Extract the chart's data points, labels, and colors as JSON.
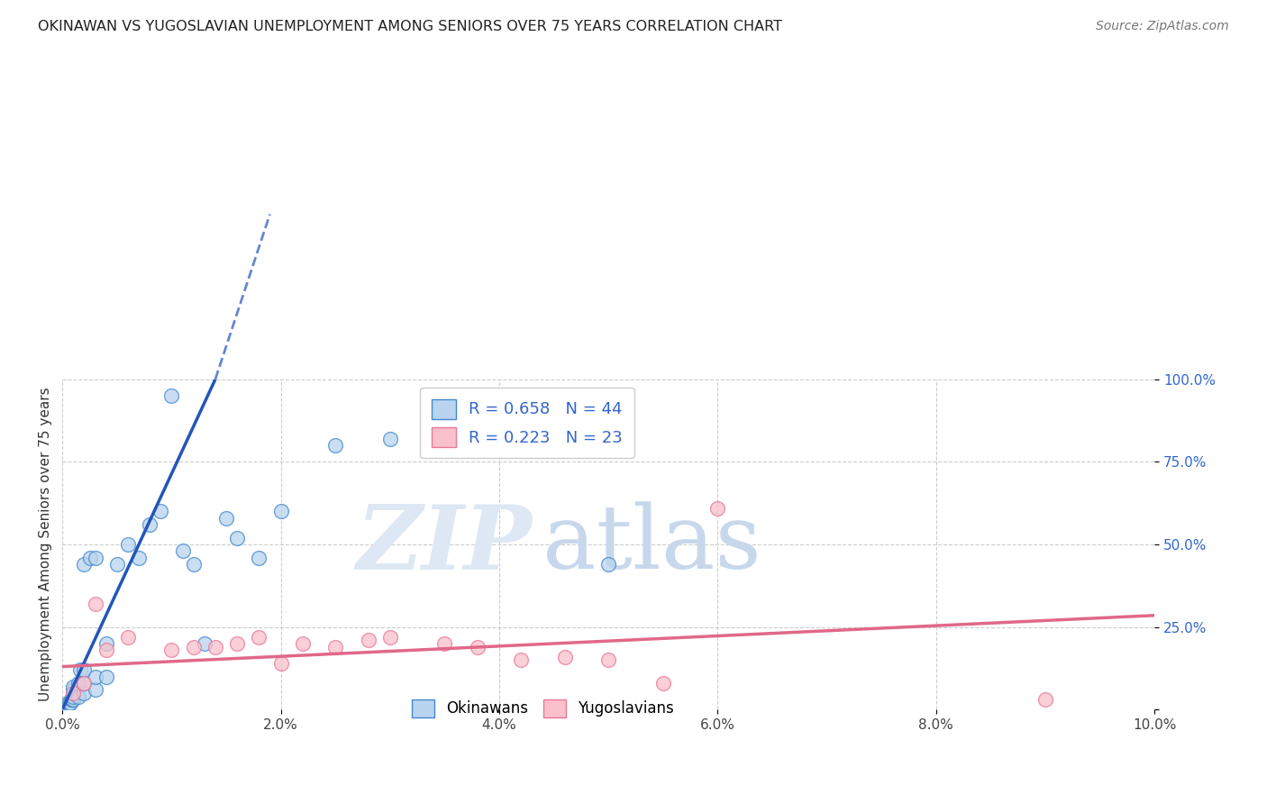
{
  "title": "OKINAWAN VS YUGOSLAVIAN UNEMPLOYMENT AMONG SENIORS OVER 75 YEARS CORRELATION CHART",
  "source": "Source: ZipAtlas.com",
  "ylabel": "Unemployment Among Seniors over 75 years",
  "legend_labels": [
    "Okinawans",
    "Yugoslavians"
  ],
  "R_okinawan": 0.658,
  "N_okinawan": 44,
  "R_yugoslavian": 0.223,
  "N_yugoslavian": 23,
  "okinawan_fill": "#b8d4ee",
  "yugoslavian_fill": "#f9c0cc",
  "okinawan_edge": "#4488cc",
  "yugoslavian_edge": "#e87898",
  "okinawan_line": "#2255bb",
  "yugoslavian_line": "#e06888",
  "xlim": [
    0,
    0.1
  ],
  "ylim": [
    0,
    1.0
  ],
  "xticks": [
    0.0,
    0.02,
    0.04,
    0.06,
    0.08,
    0.1
  ],
  "xticklabels": [
    "0.0%",
    "2.0%",
    "4.0%",
    "6.0%",
    "8.0%",
    "10.0%"
  ],
  "yticks": [
    0.0,
    0.25,
    0.5,
    0.75,
    1.0
  ],
  "yticklabels": [
    "",
    "25.0%",
    "50.0%",
    "75.0%",
    "100.0%"
  ],
  "okinawan_x": [
    0.0002,
    0.0003,
    0.0004,
    0.0005,
    0.0005,
    0.0006,
    0.0007,
    0.0008,
    0.0009,
    0.001,
    0.001,
    0.001,
    0.001,
    0.001,
    0.0015,
    0.0015,
    0.0016,
    0.002,
    0.002,
    0.002,
    0.002,
    0.0025,
    0.003,
    0.003,
    0.003,
    0.004,
    0.004,
    0.005,
    0.006,
    0.007,
    0.008,
    0.009,
    0.01,
    0.011,
    0.012,
    0.013,
    0.015,
    0.016,
    0.018,
    0.02,
    0.025,
    0.03,
    0.035,
    0.05
  ],
  "okinawan_y": [
    0.01,
    0.01,
    0.01,
    0.01,
    0.02,
    0.02,
    0.02,
    0.03,
    0.03,
    0.03,
    0.04,
    0.05,
    0.06,
    0.07,
    0.04,
    0.08,
    0.12,
    0.05,
    0.08,
    0.12,
    0.44,
    0.46,
    0.06,
    0.1,
    0.46,
    0.1,
    0.2,
    0.44,
    0.5,
    0.46,
    0.56,
    0.6,
    0.95,
    0.48,
    0.44,
    0.2,
    0.58,
    0.52,
    0.46,
    0.6,
    0.8,
    0.82,
    0.88,
    0.44
  ],
  "yugoslavian_x": [
    0.001,
    0.002,
    0.003,
    0.004,
    0.006,
    0.01,
    0.012,
    0.014,
    0.016,
    0.018,
    0.02,
    0.022,
    0.025,
    0.028,
    0.03,
    0.035,
    0.038,
    0.042,
    0.046,
    0.05,
    0.055,
    0.06,
    0.09
  ],
  "yugoslavian_y": [
    0.05,
    0.08,
    0.32,
    0.18,
    0.22,
    0.18,
    0.19,
    0.19,
    0.2,
    0.22,
    0.14,
    0.2,
    0.19,
    0.21,
    0.22,
    0.2,
    0.19,
    0.15,
    0.16,
    0.15,
    0.08,
    0.61,
    0.03
  ],
  "blue_line_x0": 0.0,
  "blue_line_y0": 0.0,
  "blue_line_x1": 0.014,
  "blue_line_y1": 1.0,
  "pink_line_x0": 0.0,
  "pink_line_y0": 0.13,
  "pink_line_x1": 0.1,
  "pink_line_y1": 0.285
}
